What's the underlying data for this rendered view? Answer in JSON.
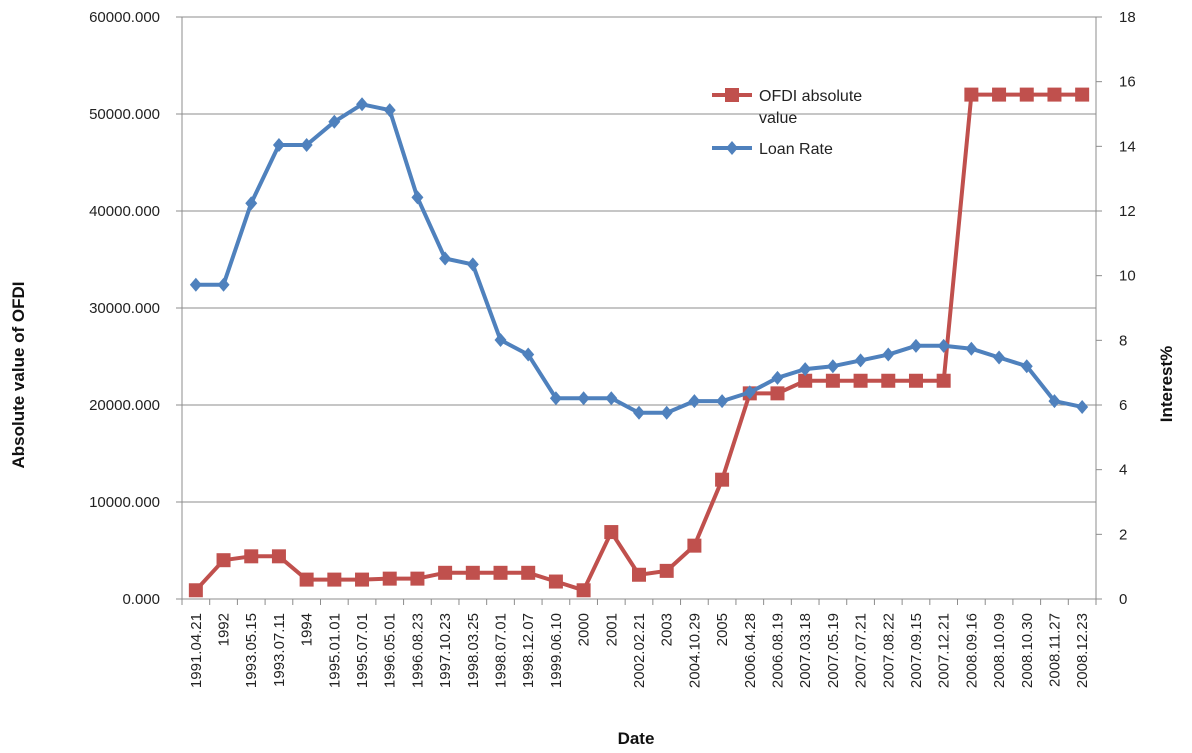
{
  "chart_data": {
    "type": "line",
    "title": "",
    "xlabel": "Date",
    "ylabel_left": "Absolute value of OFDI",
    "ylabel_right": "Interest%",
    "categories": [
      "1991.04.21",
      "1992",
      "1993.05.15",
      "1993.07.11",
      "1994",
      "1995.01.01",
      "1995.07.01",
      "1996.05.01",
      "1996.08.23",
      "1997.10.23",
      "1998.03.25",
      "1998.07.01",
      "1998.12.07",
      "1999.06.10",
      "2000",
      "2001",
      "2002.02.21",
      "2003",
      "2004.10.29",
      "2005",
      "2006.04.28",
      "2006.08.19",
      "2007.03.18",
      "2007.05.19",
      "2007.07.21",
      "2007.08.22",
      "2007.09.15",
      "2007.12.21",
      "2008.09.16",
      "2008.10.09",
      "2008.10.30",
      "2008.11.27",
      "2008.12.23"
    ],
    "y_left": {
      "min": 0,
      "max": 60000,
      "step": 10000,
      "tick_labels": [
        "0.000",
        "10000.000",
        "20000.000",
        "30000.000",
        "40000.000",
        "50000.000",
        "60000.000"
      ]
    },
    "y_right": {
      "min": 0,
      "max": 18,
      "step": 2,
      "tick_labels": [
        "0",
        "2",
        "4",
        "6",
        "8",
        "10",
        "12",
        "14",
        "16",
        "18"
      ]
    },
    "grid": true,
    "legend_position": "top-right inside plot",
    "series": [
      {
        "name": "OFDI absolute value",
        "axis": "left",
        "color": "#c0504d",
        "marker": "square",
        "values": [
          900,
          4000,
          4400,
          4400,
          2000,
          2000,
          2000,
          2100,
          2100,
          2700,
          2700,
          2700,
          2700,
          1800,
          900,
          6900,
          2500,
          2900,
          5500,
          12300,
          21200,
          21200,
          22500,
          22500,
          22500,
          22500,
          22500,
          22500,
          52000,
          52000,
          52000,
          52000,
          52000
        ]
      },
      {
        "name": "Loan Rate",
        "axis": "right",
        "color": "#4f81bd",
        "marker": "diamond",
        "values": [
          9.72,
          9.72,
          12.24,
          14.04,
          14.04,
          14.76,
          15.3,
          15.12,
          12.42,
          10.53,
          10.35,
          8.01,
          7.56,
          6.21,
          6.21,
          6.21,
          5.76,
          5.76,
          6.12,
          6.12,
          6.39,
          6.84,
          7.11,
          7.2,
          7.38,
          7.56,
          7.83,
          7.83,
          7.74,
          7.47,
          7.2,
          6.12,
          5.94
        ]
      }
    ]
  }
}
